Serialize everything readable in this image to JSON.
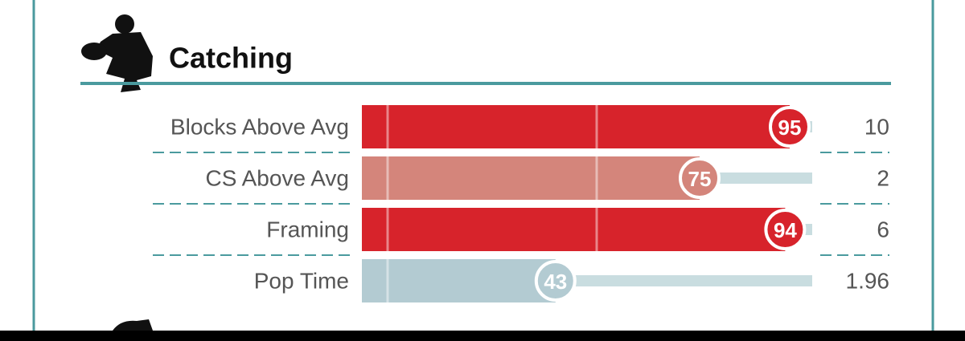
{
  "section": {
    "title": "Catching",
    "rows": [
      {
        "label": "Blocks Above Avg",
        "percentile": 95,
        "value": 10,
        "color": "#d7232b"
      },
      {
        "label": "CS Above Avg",
        "percentile": 75,
        "value": 2,
        "color": "#d4857b"
      },
      {
        "label": "Framing",
        "percentile": 94,
        "value": 6,
        "color": "#d7232b"
      },
      {
        "label": "Pop Time",
        "percentile": 43,
        "value": 1.96,
        "color": "#b3cbd2"
      }
    ]
  }
}
